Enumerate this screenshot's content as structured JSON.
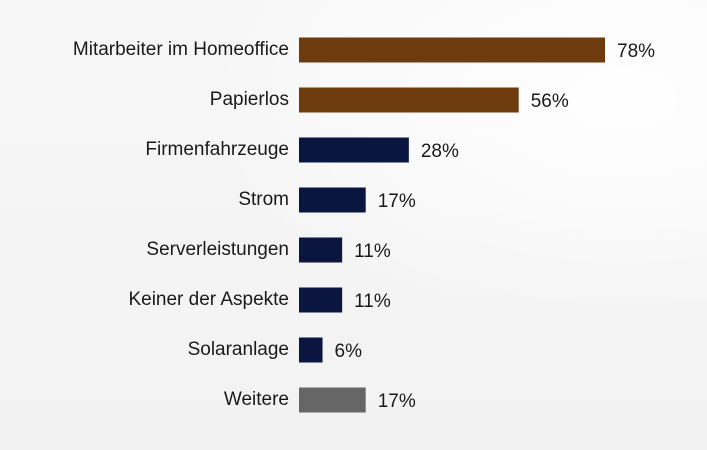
{
  "chart_data": {
    "type": "bar",
    "orientation": "horizontal",
    "categories": [
      "Mitarbeiter im Homeoffice",
      "Papierlos",
      "Firmenfahrzeuge",
      "Strom",
      "Serverleistungen",
      "Keiner der Aspekte",
      "Solaranlage",
      "Weitere"
    ],
    "values": [
      78,
      56,
      28,
      17,
      11,
      11,
      6,
      17
    ],
    "value_labels": [
      "78%",
      "56%",
      "28%",
      "17%",
      "11%",
      "11%",
      "6%",
      "17%"
    ],
    "bar_colors": [
      "#6e3b0e",
      "#6e3b0e",
      "#0b1640",
      "#0b1640",
      "#0b1640",
      "#0b1640",
      "#0b1640",
      "#666666"
    ],
    "xlim": [
      0,
      78
    ],
    "grid": false,
    "legend": "none"
  }
}
